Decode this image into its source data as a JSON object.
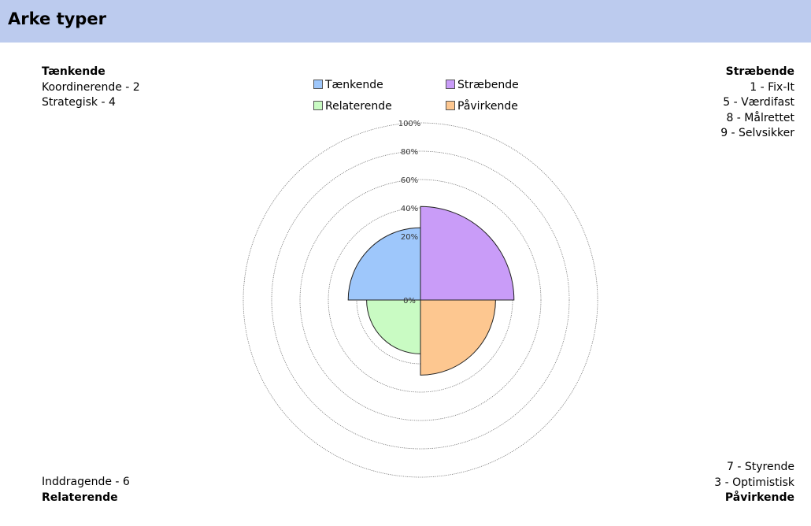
{
  "header": {
    "title": "Arke typer"
  },
  "corners": {
    "top_left": {
      "heading": "Tænkende",
      "items": [
        "Koordinerende - 2",
        "Strategisk - 4"
      ]
    },
    "top_right": {
      "heading": "Stræbende",
      "items": [
        "1 - Fix-It",
        "5 - Værdifast",
        "8 - Målrettet",
        "9 - Selvsikker"
      ]
    },
    "bottom_left": {
      "heading": "Relaterende",
      "items": [
        "Inddragende - 6"
      ]
    },
    "bottom_right": {
      "heading": "Påvirkende",
      "items": [
        "7 - Styrende",
        "3 - Optimistisk"
      ]
    }
  },
  "chart_data": {
    "type": "polar-area",
    "center_tick_labels": [
      "0%",
      "20%",
      "40%",
      "60%",
      "80%",
      "100%"
    ],
    "rlim": [
      0,
      100
    ],
    "ring_values": [
      20,
      40,
      60,
      80,
      100
    ],
    "legend_placement": "top-center",
    "series": [
      {
        "name": "Tænkende",
        "value": 26,
        "quadrant": "top-left",
        "color": "#9ec7fb"
      },
      {
        "name": "Stræbende",
        "value": 41,
        "quadrant": "top-right",
        "color": "#c99cf8"
      },
      {
        "name": "Relaterende",
        "value": 13,
        "quadrant": "bottom-left",
        "color": "#c9fbc3"
      },
      {
        "name": "Påvirkende",
        "value": 28,
        "quadrant": "bottom-right",
        "color": "#fdc790"
      }
    ]
  }
}
